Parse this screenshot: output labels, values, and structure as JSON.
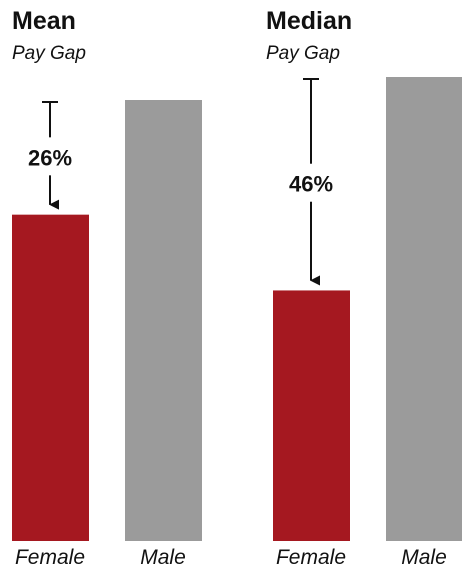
{
  "chart_data": [
    {
      "type": "bar",
      "title": "Mean",
      "subtitle": "Pay Gap",
      "categories": [
        "Female",
        "Male"
      ],
      "values": [
        74,
        100
      ],
      "ylim": [
        0,
        100
      ],
      "gap_label": "26%",
      "grid": false,
      "colors": [
        "#a51820",
        "#9b9b9b"
      ]
    },
    {
      "type": "bar",
      "title": "Median",
      "subtitle": "Pay Gap",
      "categories": [
        "Female",
        "Male"
      ],
      "values": [
        54,
        100
      ],
      "ylim": [
        0,
        100
      ],
      "gap_label": "46%",
      "grid": false,
      "colors": [
        "#a51820",
        "#9b9b9b"
      ]
    }
  ]
}
